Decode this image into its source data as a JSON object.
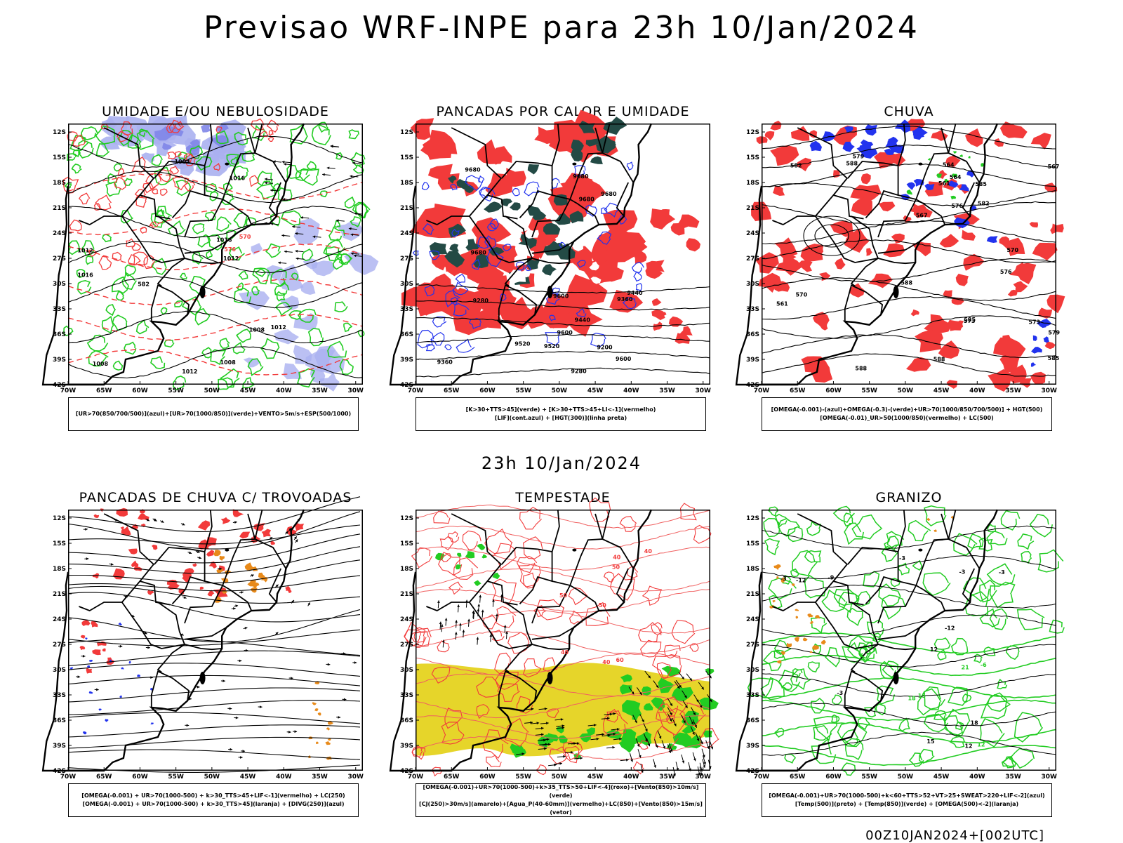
{
  "header": {
    "main_title": "Previsao WRF-INPE  para 23h 10/Jan/2024",
    "mid_title": "23h 10/Jan/2024",
    "footer": "00Z10JAN2024+[002UTC]"
  },
  "axes": {
    "lat_labels": [
      "12S",
      "15S",
      "18S",
      "21S",
      "24S",
      "27S",
      "30S",
      "33S",
      "36S",
      "39S",
      "42S"
    ],
    "lon_labels": [
      "70W",
      "65W",
      "60W",
      "55W",
      "50W",
      "45W",
      "40W",
      "35W",
      "30W"
    ]
  },
  "colors": {
    "red": "#f23a3a",
    "green": "#22cc22",
    "blue": "#2233ee",
    "lavender": "#aab0f0",
    "darkteal": "#234a45",
    "yellow": "#e6d52a",
    "orange": "#e88a1a"
  },
  "panels": [
    {
      "title": "UMIDADE E/OU NEBULOSIDADE",
      "legend": [
        "[UR>70(850/700/500)](azul)+[UR>70(1000/850)](verde)+VENTO>5m/s+ESP(500/1000)"
      ],
      "labels": [
        "1008",
        "1012",
        "1016",
        "1012",
        "1008",
        "1004",
        "1016",
        "1012",
        "1008",
        "1016",
        "1012",
        "582",
        "576",
        "570",
        "1016",
        "1012",
        "1008",
        "1012",
        "1004",
        "584",
        "1016",
        "1012",
        "1008",
        "1012",
        "1008"
      ]
    },
    {
      "title": "PANCADAS POR CALOR E UMIDADE",
      "legend": [
        "[K>30+TTS>45](verde) + [K>30+TTS>45+LI<-1](vermelho)",
        "[LIF](cont.azul) + [HGT(300)](linha preta)"
      ],
      "labels": [
        "9680",
        "9680",
        "9680",
        "9680",
        "9680",
        "9600",
        "9520",
        "9440",
        "9360",
        "9280",
        "9200",
        "9600",
        "9520",
        "9440",
        "9360",
        "9280",
        "9600"
      ]
    },
    {
      "title": "CHUVA",
      "legend": [
        "[OMEGA(-0.001)-(azul)+OMEGA(-0.3)-(verde)+UR>70(1000/850/700/500)] + HGT(500)",
        "[OMEGA(-0.01)_UR>50(1000/850)(vermelho) + LC(500)"
      ],
      "labels": [
        "588",
        "588",
        "588",
        "585",
        "582",
        "579",
        "576",
        "573",
        "570",
        "567",
        "564",
        "561",
        "585",
        "582",
        "579",
        "576",
        "573",
        "570",
        "567",
        "564",
        "561",
        "588",
        "585"
      ]
    },
    {
      "title": "PANCADAS DE CHUVA C/ TROVOADAS",
      "legend": [
        "[OMEGA(-0.001) + UR>70(1000-500) + k>30_TTS>45+LIF<-1](vermelho) + LC(250)",
        "[OMEGA(-0.001) + UR>70(1000-500) + k>30_TTS>45](laranja) + [DIVG(250)](azul)"
      ],
      "labels": []
    },
    {
      "title": "TEMPESTADE",
      "legend": [
        "[OMEGA(-0.001)+UR>70(1000-500)+k>35_TTS>50+LIF<-4](roxo)+[Vento(850)>10m/s](verde)",
        "[CJ(250)>30m/s](amarelo)+[Agua_P(40-60mm)](vermelho)+LC(850)+[Vento(850)>15m/s](vetor)"
      ],
      "labels": [
        "40",
        "40",
        "50",
        "60",
        "50",
        "40",
        "50",
        "40"
      ]
    },
    {
      "title": "GRANIZO",
      "legend": [
        "[OMEGA(-0.001)+UR>70(1000-500)+k<60+TTS>52+VT>25+SWEAT>220+LIF<-2](azul)",
        "[Temp(500)](preto) + [Temp(850)](verde) + [OMEGA(500)<-2](laranja)"
      ],
      "labels": [
        "-3",
        "-3",
        "-3",
        "-3",
        "-3",
        "-9",
        "-12",
        "12",
        "-12",
        "12",
        "15",
        "18",
        "-3",
        "-6",
        "21",
        "18",
        "15",
        "12"
      ]
    }
  ]
}
